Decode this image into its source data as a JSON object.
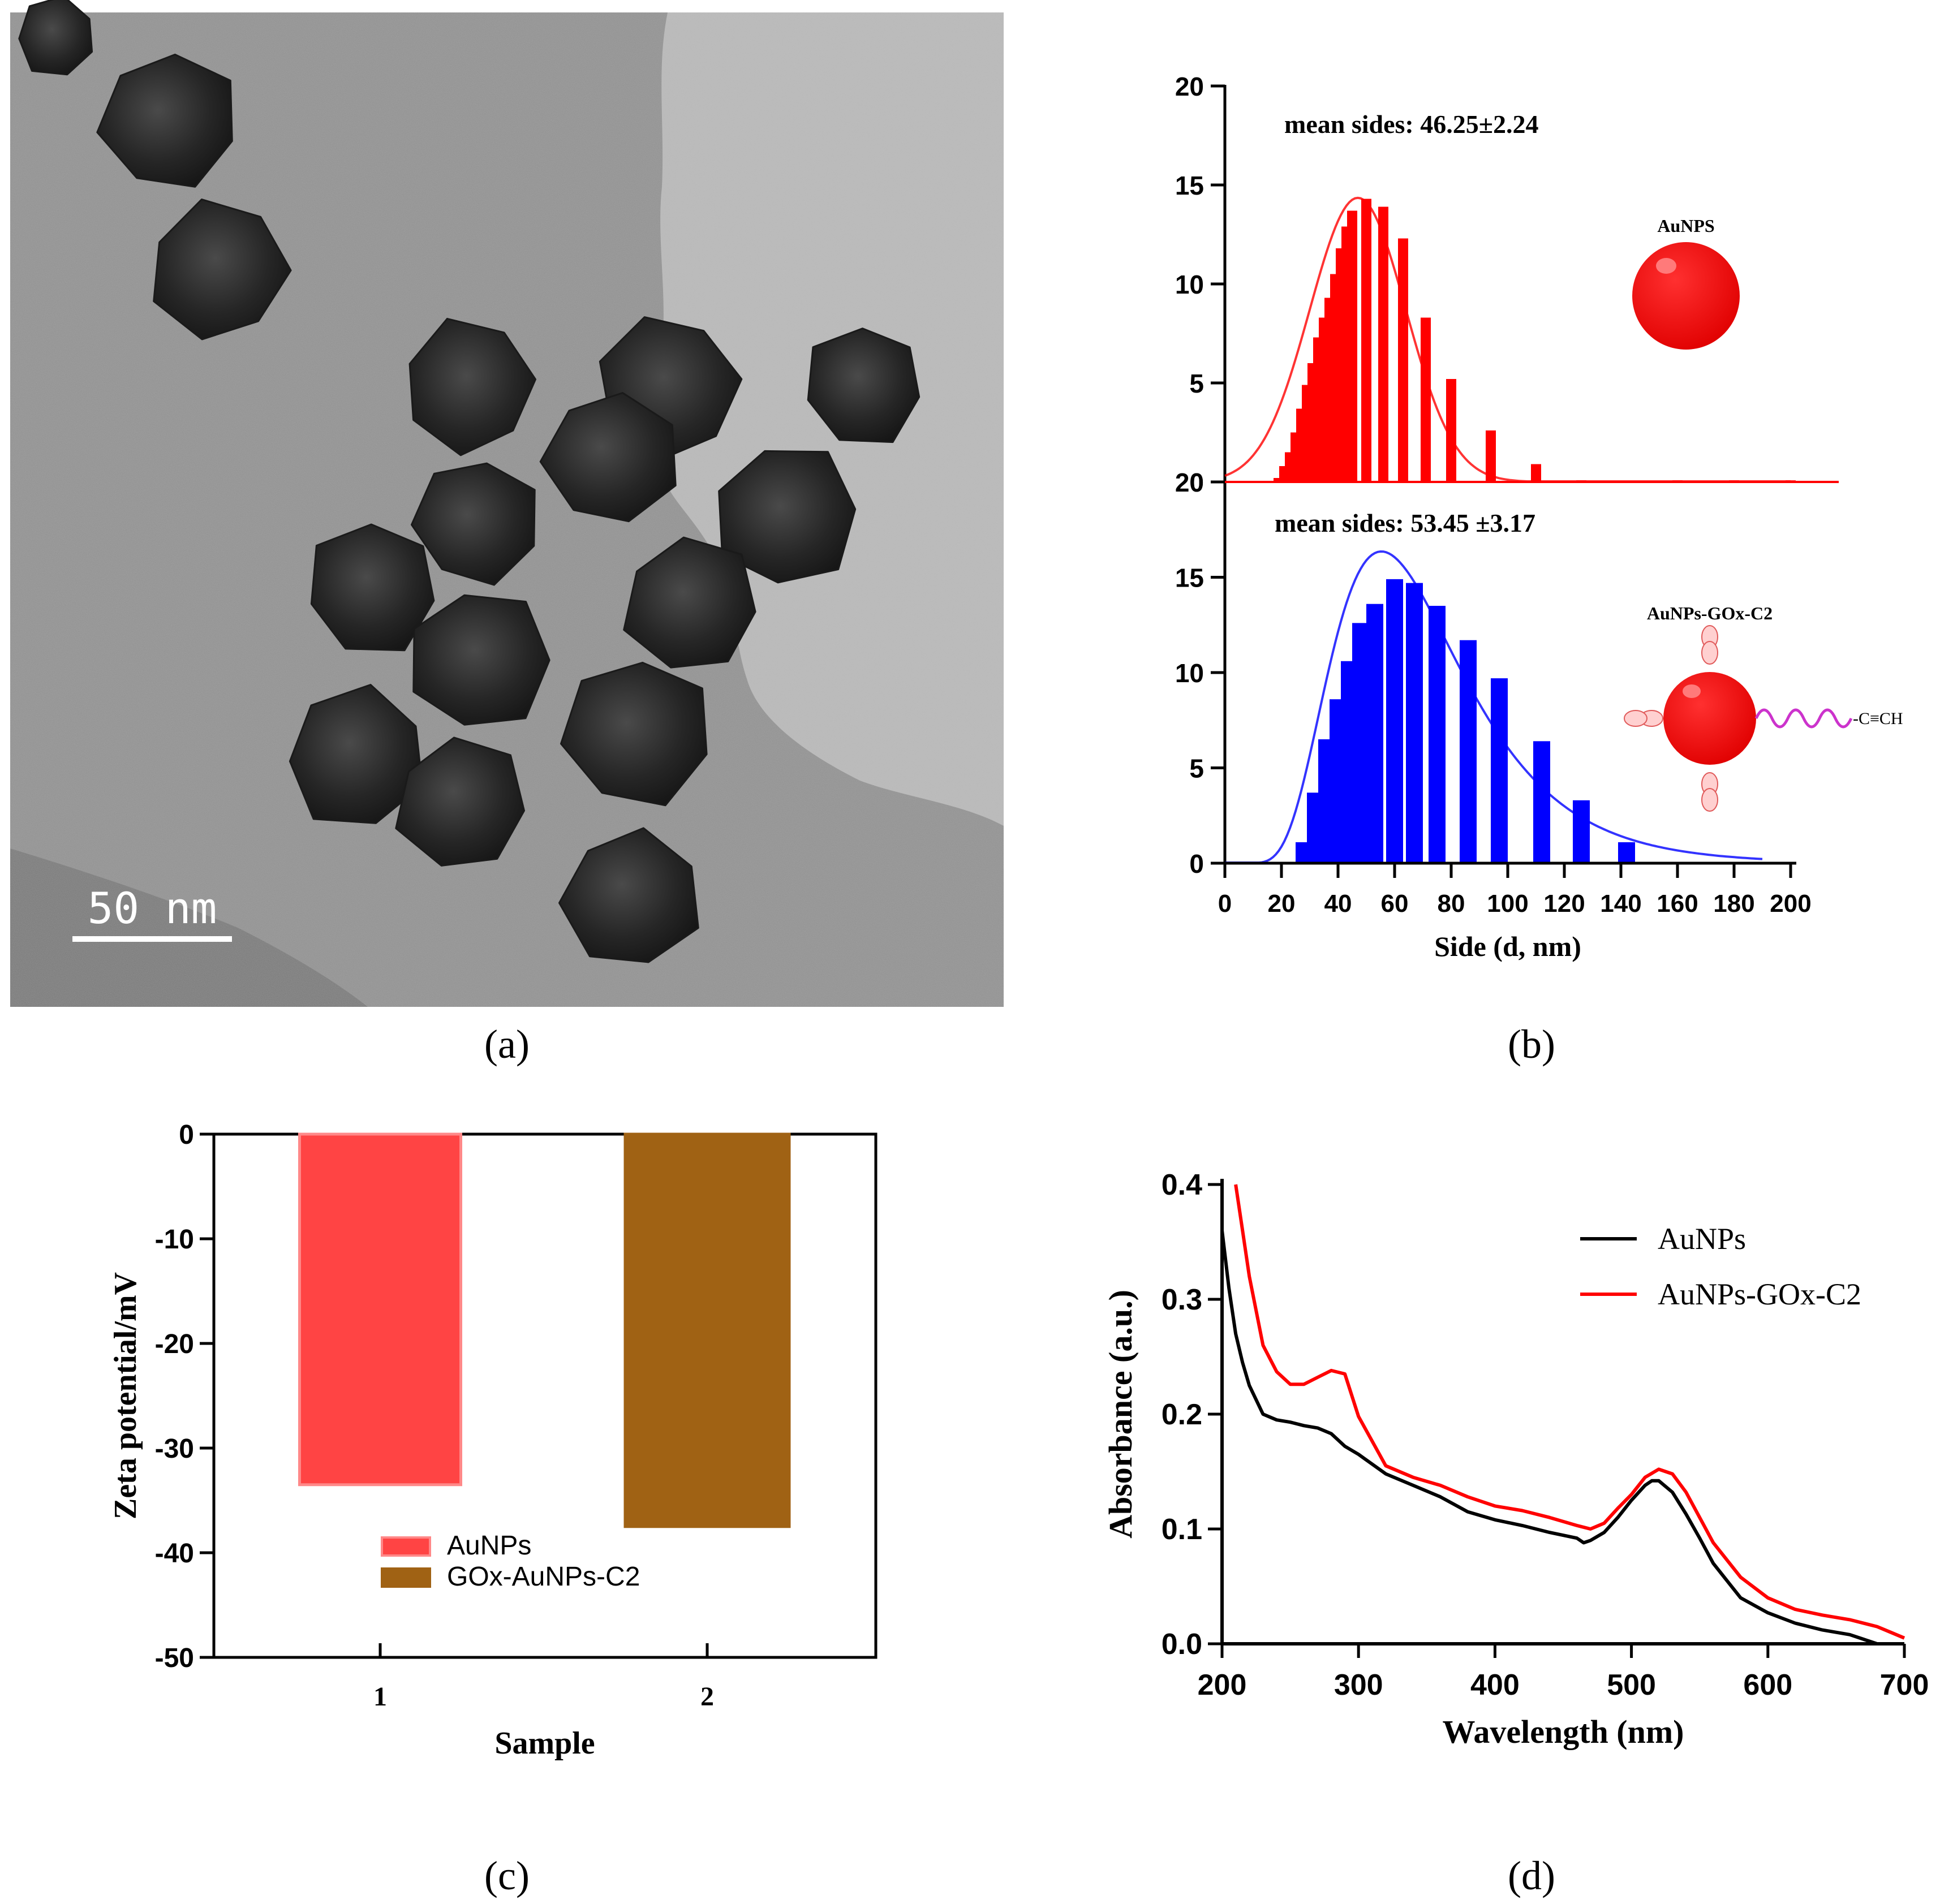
{
  "panel_labels": {
    "a": "(a)",
    "b": "(b)",
    "c": "(c)",
    "d": "(d)"
  },
  "tem": {
    "scale_bar_label": "50 nm"
  },
  "colors": {
    "red": "#ff0000",
    "blue": "#0000ff",
    "coral": "#ff4444",
    "brown": "#a06214",
    "black": "#000000"
  },
  "chart_data": [
    {
      "id": "b",
      "type": "bar",
      "xlabel": "Side (d, nm)",
      "xlim": [
        0,
        200
      ],
      "xticks": [
        0,
        20,
        40,
        60,
        80,
        100,
        120,
        140,
        160,
        180,
        200
      ],
      "panels": [
        {
          "name": "AuNPS",
          "color": "#ff0000",
          "annotation": "mean sides: 46.25±2.24",
          "ylim": [
            0,
            20
          ],
          "yticks": [
            0,
            5,
            10,
            15,
            20
          ],
          "x": [
            19,
            21,
            23,
            25,
            27,
            29,
            31,
            33,
            35,
            37,
            39,
            41,
            43,
            45,
            50,
            56,
            63,
            71,
            80,
            94,
            110,
            126,
            140,
            160,
            180,
            200
          ],
          "values": [
            0.2,
            0.8,
            1.5,
            2.5,
            3.7,
            4.9,
            6.0,
            7.3,
            8.3,
            9.3,
            10.5,
            11.8,
            12.9,
            13.7,
            14.3,
            13.9,
            12.3,
            8.3,
            5.2,
            2.6,
            0.9,
            0.08,
            0.05,
            0.08,
            0.08,
            0.08
          ],
          "fit": "gaussian"
        },
        {
          "name": "AuNPs-GOx-C2",
          "color": "#0000ff",
          "annotation": "mean sides: 53.45 ±3.17",
          "ylim": [
            0,
            20
          ],
          "yticks": [
            0,
            5,
            10,
            15,
            20
          ],
          "x": [
            28,
            32,
            36,
            40,
            44,
            48,
            53,
            60,
            67,
            75,
            86,
            97,
            112,
            126,
            142
          ],
          "values": [
            1.1,
            3.7,
            6.5,
            8.6,
            10.6,
            12.6,
            13.6,
            14.9,
            14.7,
            13.5,
            11.7,
            9.7,
            6.4,
            3.3,
            1.1
          ],
          "fit": "lognormal"
        }
      ],
      "insets": {
        "top_label": "AuNPS",
        "bottom_label": "AuNPs-GOx-C2",
        "bottom_chain_label": "-C≡CH"
      }
    },
    {
      "id": "c",
      "type": "bar",
      "xlabel": "Sample",
      "ylabel": "Zeta potential/mV",
      "ylim": [
        -50,
        0
      ],
      "yticks": [
        0,
        -10,
        -20,
        -30,
        -40,
        -50
      ],
      "categories": [
        "1",
        "2"
      ],
      "series": [
        {
          "name": "AuNPs",
          "color": "#ff4444",
          "values": [
            -33.5,
            null
          ]
        },
        {
          "name": "GOx-AuNPs-C2",
          "color": "#a06214",
          "values": [
            null,
            -37.5
          ]
        }
      ],
      "legend": "bottom-center"
    },
    {
      "id": "d",
      "type": "line",
      "xlabel": "Wavelength (nm)",
      "ylabel": "Absorbance (a.u.)",
      "xlim": [
        200,
        700
      ],
      "ylim": [
        0,
        0.4
      ],
      "xticks": [
        200,
        300,
        400,
        500,
        600,
        700
      ],
      "yticks": [
        0.0,
        0.1,
        0.2,
        0.3,
        0.4
      ],
      "ytick_labels": [
        "0.0",
        "0.1",
        "0.2",
        "0.3",
        "0.4"
      ],
      "legend": "top-right",
      "series": [
        {
          "name": "AuNPs",
          "color": "#000000",
          "x": [
            200,
            205,
            210,
            215,
            220,
            230,
            240,
            250,
            260,
            270,
            280,
            290,
            300,
            320,
            340,
            360,
            380,
            400,
            420,
            440,
            460,
            465,
            470,
            480,
            490,
            500,
            510,
            515,
            520,
            530,
            540,
            550,
            560,
            580,
            600,
            620,
            640,
            660,
            670,
            680
          ],
          "y": [
            0.36,
            0.31,
            0.27,
            0.245,
            0.225,
            0.2,
            0.195,
            0.193,
            0.19,
            0.188,
            0.183,
            0.172,
            0.165,
            0.148,
            0.138,
            0.128,
            0.115,
            0.108,
            0.103,
            0.097,
            0.092,
            0.088,
            0.09,
            0.097,
            0.11,
            0.125,
            0.138,
            0.142,
            0.142,
            0.132,
            0.113,
            0.092,
            0.07,
            0.04,
            0.027,
            0.018,
            0.012,
            0.008,
            0.004,
            0.0
          ]
        },
        {
          "name": "AuNPs-GOx-C2",
          "color": "#ff0000",
          "x": [
            210,
            215,
            220,
            230,
            240,
            250,
            260,
            270,
            280,
            290,
            300,
            320,
            340,
            360,
            380,
            400,
            420,
            440,
            460,
            470,
            480,
            490,
            500,
            510,
            520,
            530,
            540,
            550,
            560,
            580,
            600,
            620,
            640,
            660,
            680,
            690,
            700
          ],
          "y": [
            0.4,
            0.36,
            0.32,
            0.26,
            0.237,
            0.226,
            0.226,
            0.232,
            0.238,
            0.235,
            0.198,
            0.155,
            0.145,
            0.138,
            0.128,
            0.12,
            0.116,
            0.11,
            0.103,
            0.1,
            0.105,
            0.118,
            0.13,
            0.145,
            0.152,
            0.148,
            0.132,
            0.11,
            0.088,
            0.058,
            0.04,
            0.03,
            0.025,
            0.021,
            0.015,
            0.01,
            0.005
          ]
        }
      ]
    }
  ]
}
